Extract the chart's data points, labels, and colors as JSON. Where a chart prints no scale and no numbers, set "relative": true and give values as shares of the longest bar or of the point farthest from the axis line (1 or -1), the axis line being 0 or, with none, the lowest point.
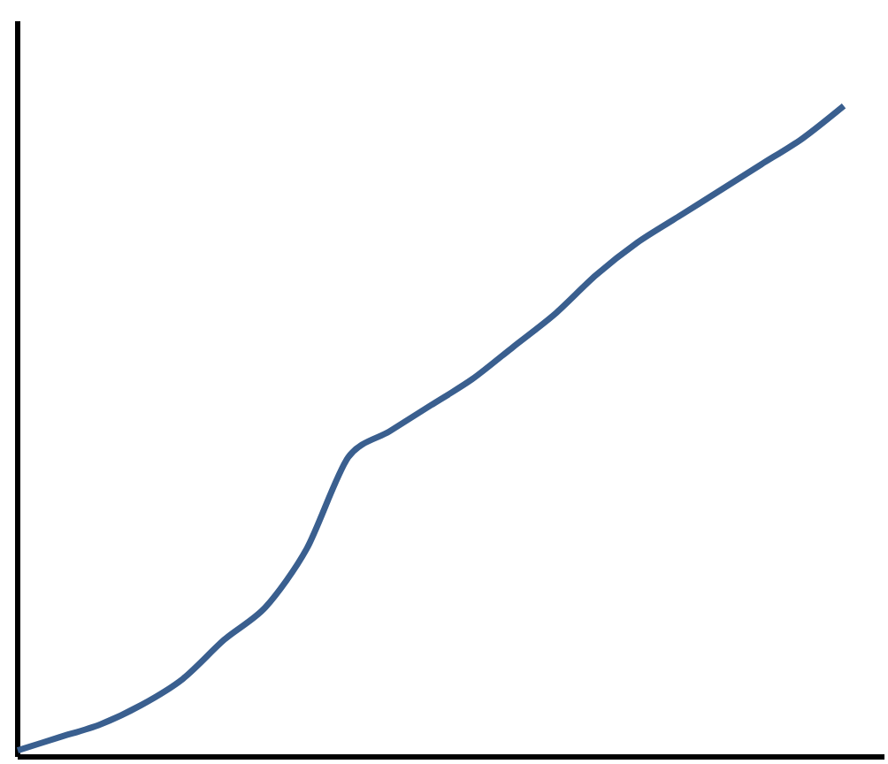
{
  "chart_data": {
    "type": "line",
    "relative": true,
    "categories": [
      null,
      null,
      null,
      null,
      null,
      null,
      null,
      null,
      null,
      null,
      null,
      null,
      null,
      null,
      null,
      null,
      null,
      null,
      null,
      null,
      null
    ],
    "color": "#3a5f8f",
    "values": [
      0.01,
      0.03,
      0.05,
      0.08,
      0.12,
      0.18,
      0.23,
      0.32,
      0.46,
      0.5,
      0.54,
      0.58,
      0.63,
      0.68,
      0.74,
      0.79,
      0.83,
      0.87,
      0.91,
      0.95,
      1
    ]
  }
}
